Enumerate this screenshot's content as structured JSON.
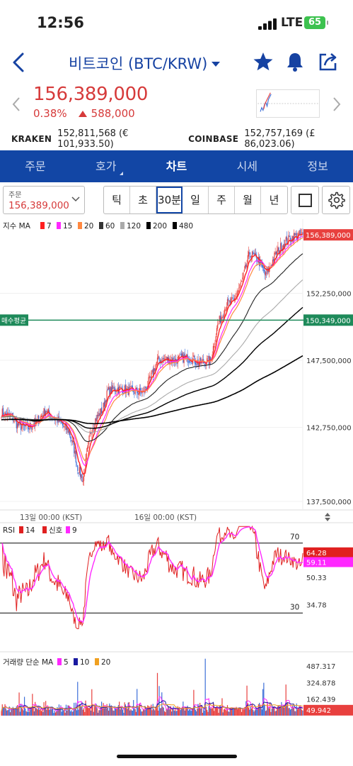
{
  "status": {
    "time": "12:56",
    "network": "LTE",
    "battery": "65"
  },
  "header": {
    "title": "비트코인 (BTC/KRW)"
  },
  "price": {
    "current": "156,389,000",
    "change_pct": "0.38%",
    "change_abs": "588,000",
    "color": "#d63a3a"
  },
  "exchanges": [
    {
      "name": "KRAKEN",
      "value": "152,811,568 (€ 101,933.50)"
    },
    {
      "name": "COINBASE",
      "value": "152,757,169 (£ 86,023.06)"
    }
  ],
  "tabs": [
    {
      "label": "주문",
      "active": false,
      "sub": false
    },
    {
      "label": "호가",
      "active": false,
      "sub": true
    },
    {
      "label": "차트",
      "active": true,
      "sub": false
    },
    {
      "label": "시세",
      "active": false,
      "sub": false
    },
    {
      "label": "정보",
      "active": false,
      "sub": false
    }
  ],
  "order_box": {
    "label": "주문",
    "value": "156,389,000"
  },
  "periods": [
    {
      "label": "틱",
      "active": false
    },
    {
      "label": "초",
      "active": false
    },
    {
      "label": "30분",
      "active": true
    },
    {
      "label": "일",
      "active": false
    },
    {
      "label": "주",
      "active": false
    },
    {
      "label": "월",
      "active": false
    },
    {
      "label": "년",
      "active": false
    }
  ],
  "colors": {
    "accent": "#1246a5",
    "up": "#e8403e",
    "down": "#3d6fd8",
    "avg_line": "#1e8a5a"
  },
  "chart_data": [
    {
      "type": "candlestick",
      "title": "",
      "legend": {
        "label": "지수 MA",
        "items": [
          {
            "name": "7",
            "color": "#ff2020"
          },
          {
            "name": "15",
            "color": "#ff28ff"
          },
          {
            "name": "20",
            "color": "#ff8840"
          },
          {
            "name": "60",
            "color": "#333333"
          },
          {
            "name": "120",
            "color": "#aaaaaa"
          },
          {
            "name": "200",
            "color": "#000000"
          },
          {
            "name": "480",
            "color": "#000000"
          }
        ]
      },
      "y_ticks": [
        "152,250,000",
        "147,500,000",
        "142,750,000",
        "137,500,000"
      ],
      "y_tick_values": [
        152250000,
        147500000,
        142750000,
        137500000
      ],
      "ylim": [
        137000000,
        157400000
      ],
      "current_price_label": "156,389,000",
      "current_price_value": 156389000,
      "avg_buy_label": "매수평균",
      "avg_buy_value_label": "150,349,000",
      "avg_buy_value": 150349000,
      "x_ticks": [
        "13일 00:00 (KST)",
        "16일 00:00 (KST)"
      ],
      "close_anchors": [
        [
          0,
          143800000
        ],
        [
          12,
          143500000
        ],
        [
          18,
          142900000
        ],
        [
          30,
          142700000
        ],
        [
          42,
          143300000
        ],
        [
          50,
          144000000
        ],
        [
          56,
          143500000
        ],
        [
          64,
          143200000
        ],
        [
          70,
          142800000
        ],
        [
          76,
          142500000
        ],
        [
          82,
          141200000
        ],
        [
          86,
          139900000
        ],
        [
          92,
          139000000
        ],
        [
          100,
          142300000
        ],
        [
          106,
          143300000
        ],
        [
          114,
          144000000
        ],
        [
          120,
          145300000
        ],
        [
          130,
          145500000
        ],
        [
          140,
          145400000
        ],
        [
          150,
          145300000
        ],
        [
          160,
          145200000
        ],
        [
          168,
          146200000
        ],
        [
          176,
          147500000
        ],
        [
          186,
          147600000
        ],
        [
          196,
          147500000
        ],
        [
          206,
          147700000
        ],
        [
          216,
          147600000
        ],
        [
          222,
          147300000
        ],
        [
          230,
          147400000
        ],
        [
          236,
          147500000
        ],
        [
          244,
          150000000
        ],
        [
          254,
          151500000
        ],
        [
          262,
          151700000
        ],
        [
          272,
          153200000
        ],
        [
          280,
          155100000
        ],
        [
          290,
          154600000
        ],
        [
          298,
          153500000
        ],
        [
          310,
          155100000
        ],
        [
          320,
          155900000
        ],
        [
          330,
          156300000
        ],
        [
          340,
          156389000
        ]
      ]
    },
    {
      "type": "line",
      "title": "",
      "legend": {
        "label": "RSI",
        "items": [
          {
            "name": "14",
            "color": "#e02020"
          },
          {
            "name": "신호",
            "color": "#e02020"
          },
          {
            "name": "9",
            "color": "#ff28ff"
          }
        ]
      },
      "levels": [
        70,
        30
      ],
      "level_labels": [
        "70",
        "30"
      ],
      "y_ticks": [
        "50.33",
        "34.78"
      ],
      "y_tick_values": [
        50.33,
        34.78
      ],
      "value_labels": [
        "64.28",
        "59.11"
      ],
      "values": [
        64.28,
        59.11
      ],
      "ylim": [
        20,
        80
      ]
    },
    {
      "type": "bar",
      "title": "",
      "legend": {
        "label": "거래량 단순 MA",
        "items": [
          {
            "name": "5",
            "color": "#ff28ff"
          },
          {
            "name": "10",
            "color": "#1a1aa0"
          },
          {
            "name": "20",
            "color": "#f0a020"
          }
        ]
      },
      "y_ticks": [
        "487.317",
        "324.878",
        "162.439"
      ],
      "y_tick_values": [
        487.317,
        324.878,
        162.439
      ],
      "last_value_label": "49.942",
      "last_value": 49.942,
      "ylim": [
        0,
        600
      ]
    }
  ]
}
